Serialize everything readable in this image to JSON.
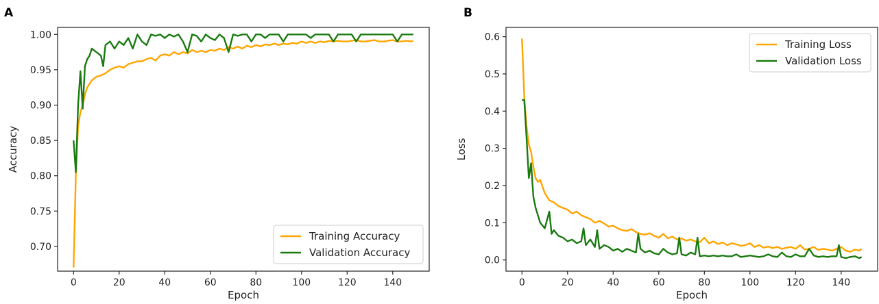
{
  "chart_data": [
    {
      "panel_label": "A",
      "type": "line",
      "xlabel": "Epoch",
      "ylabel": "Accuracy",
      "xlim": [
        -7,
        156
      ],
      "ylim": [
        0.665,
        1.01
      ],
      "xticks": [
        0,
        20,
        40,
        60,
        80,
        100,
        120,
        140
      ],
      "yticks": [
        0.7,
        0.75,
        0.8,
        0.85,
        0.9,
        0.95,
        1.0
      ],
      "ytick_labels": [
        "0.70",
        "0.75",
        "0.80",
        "0.85",
        "0.90",
        "0.95",
        "1.00"
      ],
      "legend_position": "lower right",
      "grid": false,
      "series": [
        {
          "name": "Training Accuracy",
          "color": "#FFA500",
          "x": [
            0,
            1,
            2,
            3,
            4,
            5,
            6,
            8,
            10,
            12,
            14,
            16,
            18,
            20,
            22,
            24,
            26,
            28,
            30,
            32,
            34,
            36,
            38,
            40,
            42,
            44,
            46,
            48,
            50,
            52,
            54,
            56,
            58,
            60,
            62,
            64,
            66,
            68,
            70,
            72,
            74,
            76,
            78,
            80,
            82,
            84,
            86,
            88,
            90,
            92,
            94,
            96,
            98,
            100,
            102,
            104,
            106,
            108,
            110,
            112,
            114,
            116,
            118,
            120,
            122,
            124,
            126,
            128,
            130,
            132,
            134,
            136,
            138,
            140,
            142,
            144,
            146,
            148,
            149
          ],
          "values": [
            0.67,
            0.8,
            0.87,
            0.89,
            0.9,
            0.915,
            0.925,
            0.935,
            0.94,
            0.942,
            0.945,
            0.95,
            0.953,
            0.955,
            0.953,
            0.958,
            0.96,
            0.962,
            0.962,
            0.965,
            0.967,
            0.963,
            0.97,
            0.972,
            0.97,
            0.975,
            0.972,
            0.975,
            0.973,
            0.978,
            0.975,
            0.977,
            0.975,
            0.978,
            0.977,
            0.98,
            0.978,
            0.982,
            0.98,
            0.983,
            0.98,
            0.984,
            0.982,
            0.985,
            0.983,
            0.986,
            0.985,
            0.987,
            0.985,
            0.987,
            0.986,
            0.988,
            0.987,
            0.99,
            0.988,
            0.99,
            0.988,
            0.99,
            0.989,
            0.991,
            0.99,
            0.991,
            0.99,
            0.99,
            0.991,
            0.992,
            0.99,
            0.99,
            0.991,
            0.992,
            0.99,
            0.99,
            0.991,
            0.992,
            0.99,
            0.99,
            0.991,
            0.99,
            0.991
          ]
        },
        {
          "name": "Validation Accuracy",
          "color": "#1A7A10",
          "x": [
            0,
            1,
            2,
            3,
            4,
            5,
            6,
            7,
            8,
            10,
            12,
            13,
            14,
            16,
            18,
            20,
            22,
            24,
            26,
            28,
            30,
            32,
            34,
            36,
            38,
            40,
            42,
            44,
            46,
            48,
            50,
            52,
            54,
            56,
            58,
            60,
            62,
            64,
            66,
            68,
            70,
            72,
            74,
            76,
            78,
            80,
            82,
            84,
            86,
            88,
            90,
            92,
            94,
            96,
            98,
            100,
            102,
            104,
            106,
            108,
            110,
            112,
            114,
            116,
            118,
            120,
            122,
            124,
            126,
            128,
            130,
            132,
            134,
            136,
            138,
            140,
            142,
            144,
            146,
            148,
            149
          ],
          "values": [
            0.85,
            0.805,
            0.9,
            0.948,
            0.895,
            0.955,
            0.965,
            0.97,
            0.98,
            0.975,
            0.97,
            0.955,
            0.985,
            0.99,
            0.98,
            0.99,
            0.985,
            0.995,
            0.98,
            1.0,
            0.99,
            0.985,
            1.0,
            0.998,
            1.0,
            0.995,
            1.0,
            0.997,
            1.0,
            0.99,
            0.975,
            1.0,
            0.998,
            0.99,
            1.0,
            0.995,
            0.992,
            1.0,
            0.995,
            0.975,
            1.0,
            0.998,
            1.0,
            1.0,
            0.99,
            1.0,
            1.0,
            0.995,
            1.0,
            1.0,
            1.0,
            0.99,
            1.0,
            1.0,
            1.0,
            1.0,
            1.0,
            0.995,
            1.0,
            1.0,
            1.0,
            1.0,
            0.99,
            1.0,
            1.0,
            1.0,
            1.0,
            0.99,
            1.0,
            1.0,
            1.0,
            1.0,
            1.0,
            1.0,
            1.0,
            1.0,
            0.99,
            1.0,
            1.0,
            1.0,
            1.0
          ]
        }
      ]
    },
    {
      "panel_label": "B",
      "type": "line",
      "xlabel": "Epoch",
      "ylabel": "Loss",
      "xlim": [
        -7,
        156
      ],
      "ylim": [
        -0.03,
        0.625
      ],
      "xticks": [
        0,
        20,
        40,
        60,
        80,
        100,
        120,
        140
      ],
      "yticks": [
        0.0,
        0.1,
        0.2,
        0.3,
        0.4,
        0.5,
        0.6
      ],
      "ytick_labels": [
        "0.0",
        "0.1",
        "0.2",
        "0.3",
        "0.4",
        "0.5",
        "0.6"
      ],
      "legend_position": "upper right",
      "grid": false,
      "series": [
        {
          "name": "Training Loss",
          "color": "#FFA500",
          "x": [
            0,
            1,
            2,
            3,
            4,
            5,
            6,
            7,
            8,
            10,
            12,
            14,
            16,
            18,
            20,
            22,
            24,
            26,
            28,
            30,
            32,
            34,
            36,
            38,
            40,
            42,
            44,
            46,
            48,
            50,
            52,
            54,
            56,
            58,
            60,
            62,
            64,
            66,
            68,
            70,
            72,
            74,
            76,
            78,
            80,
            82,
            84,
            86,
            88,
            90,
            92,
            94,
            96,
            98,
            100,
            102,
            104,
            106,
            108,
            110,
            112,
            114,
            116,
            118,
            120,
            122,
            124,
            126,
            128,
            130,
            132,
            134,
            136,
            138,
            140,
            142,
            144,
            146,
            148,
            149
          ],
          "values": [
            0.595,
            0.44,
            0.36,
            0.31,
            0.29,
            0.25,
            0.22,
            0.21,
            0.215,
            0.18,
            0.16,
            0.155,
            0.145,
            0.14,
            0.135,
            0.125,
            0.13,
            0.12,
            0.115,
            0.11,
            0.1,
            0.105,
            0.098,
            0.09,
            0.092,
            0.085,
            0.08,
            0.078,
            0.083,
            0.075,
            0.07,
            0.068,
            0.072,
            0.065,
            0.06,
            0.07,
            0.058,
            0.063,
            0.055,
            0.058,
            0.052,
            0.055,
            0.05,
            0.048,
            0.06,
            0.045,
            0.05,
            0.043,
            0.047,
            0.04,
            0.045,
            0.042,
            0.038,
            0.04,
            0.045,
            0.035,
            0.04,
            0.033,
            0.036,
            0.032,
            0.035,
            0.03,
            0.033,
            0.035,
            0.03,
            0.04,
            0.028,
            0.03,
            0.035,
            0.027,
            0.03,
            0.028,
            0.025,
            0.03,
            0.035,
            0.025,
            0.022,
            0.028,
            0.025,
            0.03
          ]
        },
        {
          "name": "Validation Loss",
          "color": "#1A7A10",
          "x": [
            0,
            1,
            2,
            3,
            4,
            5,
            6,
            7,
            8,
            10,
            12,
            13,
            14,
            16,
            18,
            20,
            22,
            24,
            26,
            27,
            28,
            30,
            32,
            33,
            34,
            36,
            38,
            40,
            42,
            44,
            46,
            48,
            50,
            51,
            52,
            54,
            56,
            58,
            60,
            62,
            64,
            66,
            68,
            69,
            70,
            72,
            74,
            76,
            77,
            78,
            80,
            82,
            84,
            86,
            88,
            90,
            92,
            94,
            96,
            98,
            100,
            102,
            104,
            106,
            108,
            110,
            112,
            114,
            116,
            118,
            120,
            122,
            124,
            126,
            128,
            130,
            132,
            134,
            136,
            138,
            139,
            140,
            142,
            144,
            146,
            148,
            149
          ],
          "values": [
            0.43,
            0.43,
            0.33,
            0.22,
            0.26,
            0.17,
            0.14,
            0.12,
            0.1,
            0.085,
            0.13,
            0.07,
            0.08,
            0.065,
            0.06,
            0.05,
            0.055,
            0.045,
            0.05,
            0.085,
            0.04,
            0.055,
            0.035,
            0.08,
            0.03,
            0.04,
            0.035,
            0.025,
            0.03,
            0.022,
            0.03,
            0.025,
            0.02,
            0.07,
            0.03,
            0.02,
            0.025,
            0.018,
            0.015,
            0.03,
            0.02,
            0.015,
            0.018,
            0.06,
            0.015,
            0.012,
            0.02,
            0.015,
            0.06,
            0.01,
            0.012,
            0.01,
            0.012,
            0.01,
            0.012,
            0.01,
            0.01,
            0.015,
            0.008,
            0.01,
            0.012,
            0.01,
            0.008,
            0.01,
            0.015,
            0.01,
            0.008,
            0.02,
            0.01,
            0.008,
            0.015,
            0.01,
            0.01,
            0.03,
            0.012,
            0.008,
            0.01,
            0.008,
            0.01,
            0.01,
            0.04,
            0.008,
            0.005,
            0.008,
            0.01,
            0.005,
            0.008
          ]
        }
      ]
    }
  ]
}
